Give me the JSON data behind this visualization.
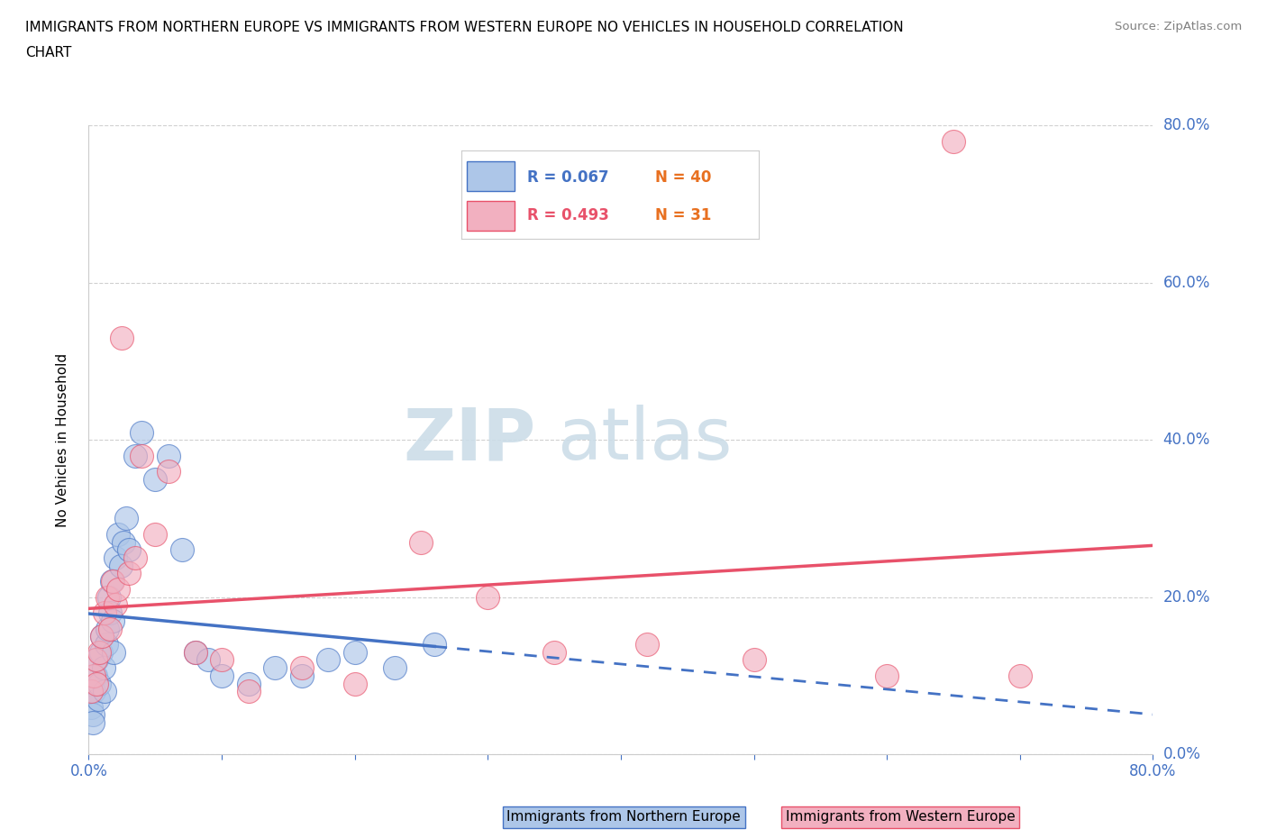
{
  "title_line1": "IMMIGRANTS FROM NORTHERN EUROPE VS IMMIGRANTS FROM WESTERN EUROPE NO VEHICLES IN HOUSEHOLD CORRELATION",
  "title_line2": "CHART",
  "source": "Source: ZipAtlas.com",
  "ylabel": "No Vehicles in Household",
  "xmin": 0.0,
  "xmax": 0.8,
  "ymin": 0.0,
  "ymax": 0.8,
  "blue_R": 0.067,
  "blue_N": 40,
  "pink_R": 0.493,
  "pink_N": 31,
  "blue_color": "#adc6e8",
  "pink_color": "#f2b0c0",
  "blue_line_color": "#4472c4",
  "pink_line_color": "#e8516a",
  "blue_scatter": [
    [
      0.002,
      0.06
    ],
    [
      0.003,
      0.05
    ],
    [
      0.004,
      0.08
    ],
    [
      0.005,
      0.1
    ],
    [
      0.006,
      0.12
    ],
    [
      0.007,
      0.07
    ],
    [
      0.008,
      0.09
    ],
    [
      0.009,
      0.13
    ],
    [
      0.01,
      0.15
    ],
    [
      0.011,
      0.11
    ],
    [
      0.012,
      0.08
    ],
    [
      0.013,
      0.14
    ],
    [
      0.014,
      0.16
    ],
    [
      0.015,
      0.2
    ],
    [
      0.016,
      0.18
    ],
    [
      0.017,
      0.22
    ],
    [
      0.018,
      0.17
    ],
    [
      0.019,
      0.13
    ],
    [
      0.02,
      0.25
    ],
    [
      0.022,
      0.28
    ],
    [
      0.024,
      0.24
    ],
    [
      0.026,
      0.27
    ],
    [
      0.028,
      0.3
    ],
    [
      0.03,
      0.26
    ],
    [
      0.035,
      0.38
    ],
    [
      0.04,
      0.41
    ],
    [
      0.05,
      0.35
    ],
    [
      0.06,
      0.38
    ],
    [
      0.07,
      0.26
    ],
    [
      0.08,
      0.13
    ],
    [
      0.09,
      0.12
    ],
    [
      0.1,
      0.1
    ],
    [
      0.12,
      0.09
    ],
    [
      0.14,
      0.11
    ],
    [
      0.16,
      0.1
    ],
    [
      0.18,
      0.12
    ],
    [
      0.2,
      0.13
    ],
    [
      0.23,
      0.11
    ],
    [
      0.26,
      0.14
    ],
    [
      0.003,
      0.04
    ]
  ],
  "pink_scatter": [
    [
      0.002,
      0.08
    ],
    [
      0.004,
      0.1
    ],
    [
      0.005,
      0.12
    ],
    [
      0.006,
      0.09
    ],
    [
      0.008,
      0.13
    ],
    [
      0.01,
      0.15
    ],
    [
      0.012,
      0.18
    ],
    [
      0.014,
      0.2
    ],
    [
      0.016,
      0.16
    ],
    [
      0.018,
      0.22
    ],
    [
      0.02,
      0.19
    ],
    [
      0.022,
      0.21
    ],
    [
      0.025,
      0.53
    ],
    [
      0.03,
      0.23
    ],
    [
      0.035,
      0.25
    ],
    [
      0.04,
      0.38
    ],
    [
      0.05,
      0.28
    ],
    [
      0.06,
      0.36
    ],
    [
      0.08,
      0.13
    ],
    [
      0.1,
      0.12
    ],
    [
      0.12,
      0.08
    ],
    [
      0.16,
      0.11
    ],
    [
      0.2,
      0.09
    ],
    [
      0.25,
      0.27
    ],
    [
      0.3,
      0.2
    ],
    [
      0.35,
      0.13
    ],
    [
      0.42,
      0.14
    ],
    [
      0.5,
      0.12
    ],
    [
      0.6,
      0.1
    ],
    [
      0.65,
      0.78
    ],
    [
      0.7,
      0.1
    ]
  ],
  "watermark": "ZIPatlas",
  "watermark_color": "#ccdde8",
  "legend_label_blue": "Immigrants from Northern Europe",
  "legend_label_pink": "Immigrants from Western Europe"
}
